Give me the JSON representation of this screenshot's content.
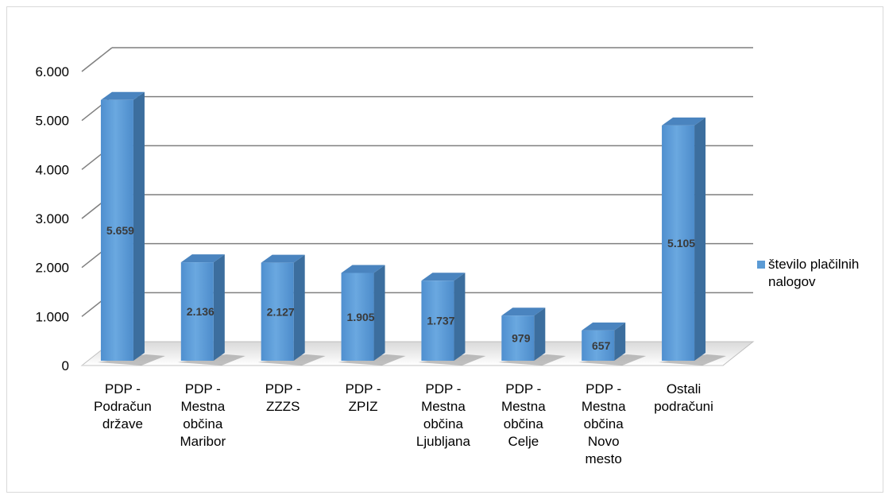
{
  "chart_data": {
    "type": "bar",
    "style": "3d-column",
    "categories": [
      "PDP - Podračun države",
      "PDP - Mestna občina Maribor",
      "PDP - ZZZS",
      "PDP - ZPIZ",
      "PDP - Mestna občina Ljubljana",
      "PDP - Mestna občina Celje",
      "PDP - Mestna občina Novo mesto",
      "Ostali podračuni"
    ],
    "category_lines": [
      [
        "PDP -",
        "Podračun",
        "države"
      ],
      [
        "PDP -",
        "Mestna",
        "občina",
        "Maribor"
      ],
      [
        "PDP -",
        "ZZZS"
      ],
      [
        "PDP -",
        "ZPIZ"
      ],
      [
        "PDP -",
        "Mestna",
        "občina",
        "Ljubljana"
      ],
      [
        "PDP -",
        "Mestna",
        "občina",
        "Celje"
      ],
      [
        "PDP -",
        "Mestna",
        "občina",
        "Novo",
        "mesto"
      ],
      [
        "Ostali",
        "podračuni"
      ]
    ],
    "series": [
      {
        "name": "število plačilnih nalogov",
        "values": [
          5659,
          2136,
          2127,
          1905,
          1737,
          979,
          657,
          5105
        ],
        "data_labels": [
          "5.659",
          "2.136",
          "2.127",
          "1.905",
          "1.737",
          "979",
          "657",
          "5.105"
        ]
      }
    ],
    "ylim": [
      0,
      6000
    ],
    "yticks": [
      0,
      1000,
      2000,
      3000,
      4000,
      5000,
      6000
    ],
    "ytick_labels": [
      "0",
      "1.000",
      "2.000",
      "3.000",
      "4.000",
      "5.000",
      "6.000"
    ],
    "grid": true,
    "legend_position": "right",
    "colors": {
      "bar_front": "#5b9bd5",
      "bar_side": "#3c6e9e",
      "bar_top": "#4a84bf",
      "grid": "#7f7f7f",
      "floor": "#bfbfbf"
    }
  },
  "legend": {
    "label_line1": "število plačilnih",
    "label_line2": "nalogov"
  }
}
